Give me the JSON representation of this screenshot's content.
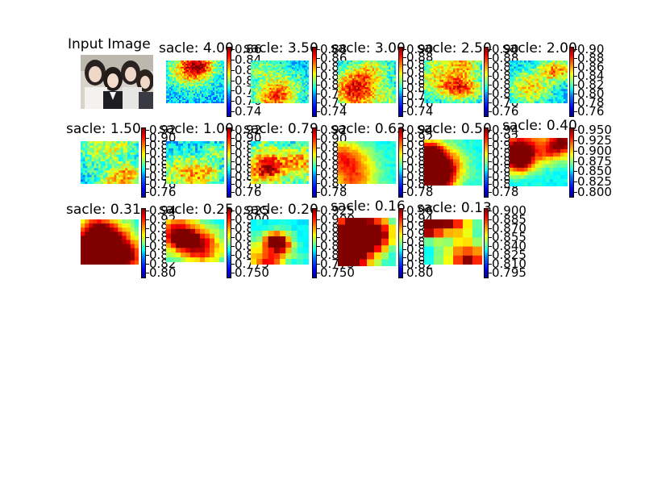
{
  "input_image": {
    "title": "Input Image"
  },
  "chart_data": {
    "type": "heatmap",
    "colormap": "jet",
    "panels": [
      {
        "title": "sacle: 4.00",
        "ticks": [
          "0.86",
          "0.84",
          "0.82",
          "0.80",
          "0.78",
          "0.76",
          "0.74"
        ],
        "ticklabels_visible": [
          "0.86",
          "0.84",
          "0.82",
          "0.80",
          "0.78",
          "0.76",
          "0.74"
        ]
      },
      {
        "title": "sacle: 3.50",
        "ticks": [
          "0.88",
          "0.86",
          "0.84",
          "0.82",
          "0.80",
          "0.78",
          "0.76",
          "0.74"
        ]
      },
      {
        "title": "sacle: 3.00",
        "ticks": [
          "0.90",
          "0.88",
          "0.86",
          "0.84",
          "0.82",
          "0.80",
          "0.78",
          "0.76",
          "0.74"
        ]
      },
      {
        "title": "sacle: 2.50",
        "ticks": [
          "0.90",
          "0.88",
          "0.86",
          "0.84",
          "0.82",
          "0.80",
          "0.78",
          "0.76"
        ]
      },
      {
        "title": "sacle: 2.00",
        "ticks": [
          "0.90",
          "0.88",
          "0.86",
          "0.84",
          "0.82",
          "0.80",
          "0.78",
          "0.76"
        ]
      },
      {
        "title": "sacle: 1.50",
        "ticks": [
          "0.92",
          "0.90",
          "0.88",
          "0.86",
          "0.84",
          "0.82",
          "0.80",
          "0.78",
          "0.76"
        ]
      },
      {
        "title": "sacle: 1.00",
        "ticks": [
          "0.92",
          "0.90",
          "0.88",
          "0.86",
          "0.84",
          "0.82",
          "0.80",
          "0.78",
          "0.76"
        ]
      },
      {
        "title": "sacle: 0.79",
        "ticks": [
          "0.92",
          "0.90",
          "0.88",
          "0.86",
          "0.84",
          "0.82",
          "0.80",
          "0.78"
        ]
      },
      {
        "title": "sacle: 0.63",
        "ticks": [
          "0.94",
          "0.92",
          "0.90",
          "0.88",
          "0.86",
          "0.84",
          "0.82",
          "0.80",
          "0.78"
        ]
      },
      {
        "title": "sacle: 0.50",
        "ticks": [
          "0.94",
          "0.92",
          "0.90",
          "0.88",
          "0.86",
          "0.84",
          "0.82",
          "0.80",
          "0.78"
        ]
      },
      {
        "title": "sacle: 0.40",
        "ticks": [
          "0.950",
          "0.925",
          "0.900",
          "0.875",
          "0.850",
          "0.825",
          "0.800"
        ]
      },
      {
        "title": "sacle: 0.31",
        "ticks": [
          "0.94",
          "0.92",
          "0.90",
          "0.88",
          "0.86",
          "0.84",
          "0.82",
          "0.80"
        ]
      },
      {
        "title": "sacle: 0.25",
        "ticks": [
          "0.925",
          "0.900",
          "0.875",
          "0.850",
          "0.825",
          "0.800",
          "0.775",
          "0.750"
        ]
      },
      {
        "title": "sacle: 0.20",
        "ticks": [
          "0.925",
          "0.900",
          "0.875",
          "0.850",
          "0.825",
          "0.800",
          "0.775",
          "0.750"
        ]
      },
      {
        "title": "sacle: 0.16",
        "ticks": [
          "0.96",
          "0.94",
          "0.92",
          "0.90",
          "0.88",
          "0.86",
          "0.84",
          "0.82",
          "0.80"
        ]
      },
      {
        "title": "sacle: 0.13",
        "ticks": [
          "0.900",
          "0.885",
          "0.870",
          "0.855",
          "0.840",
          "0.825",
          "0.810",
          "0.795"
        ]
      }
    ]
  }
}
